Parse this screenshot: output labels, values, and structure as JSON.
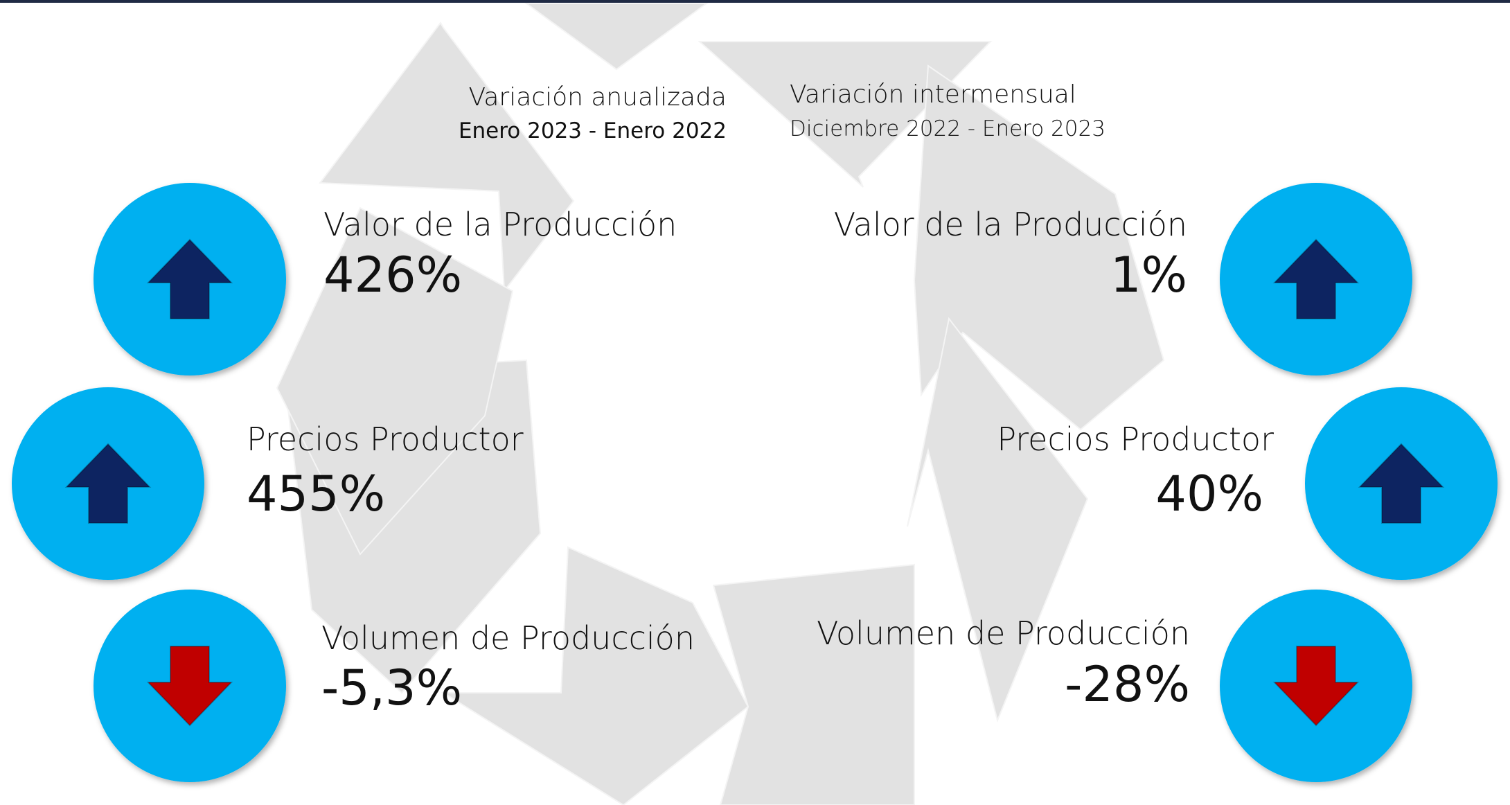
{
  "left": {
    "header": {
      "line1": "Variación anualizada",
      "line2": "Enero 2023 - Enero 2022"
    },
    "items": [
      {
        "label": "Valor de la Producción",
        "value": "426%",
        "direction": "up"
      },
      {
        "label": "Precios Productor",
        "value": "455%",
        "direction": "up"
      },
      {
        "label": "Volumen de Producción",
        "value": "-5,3%",
        "direction": "down"
      }
    ]
  },
  "right": {
    "header": {
      "line1": "Variación intermensual",
      "line2": "Diciembre 2022 - Enero 2023"
    },
    "items": [
      {
        "label": "Valor de la Producción",
        "value": "1%",
        "direction": "up"
      },
      {
        "label": "Precios Productor",
        "value": "40%",
        "direction": "up"
      },
      {
        "label": "Volumen de Producción",
        "value": "-28%",
        "direction": "down"
      }
    ]
  }
}
